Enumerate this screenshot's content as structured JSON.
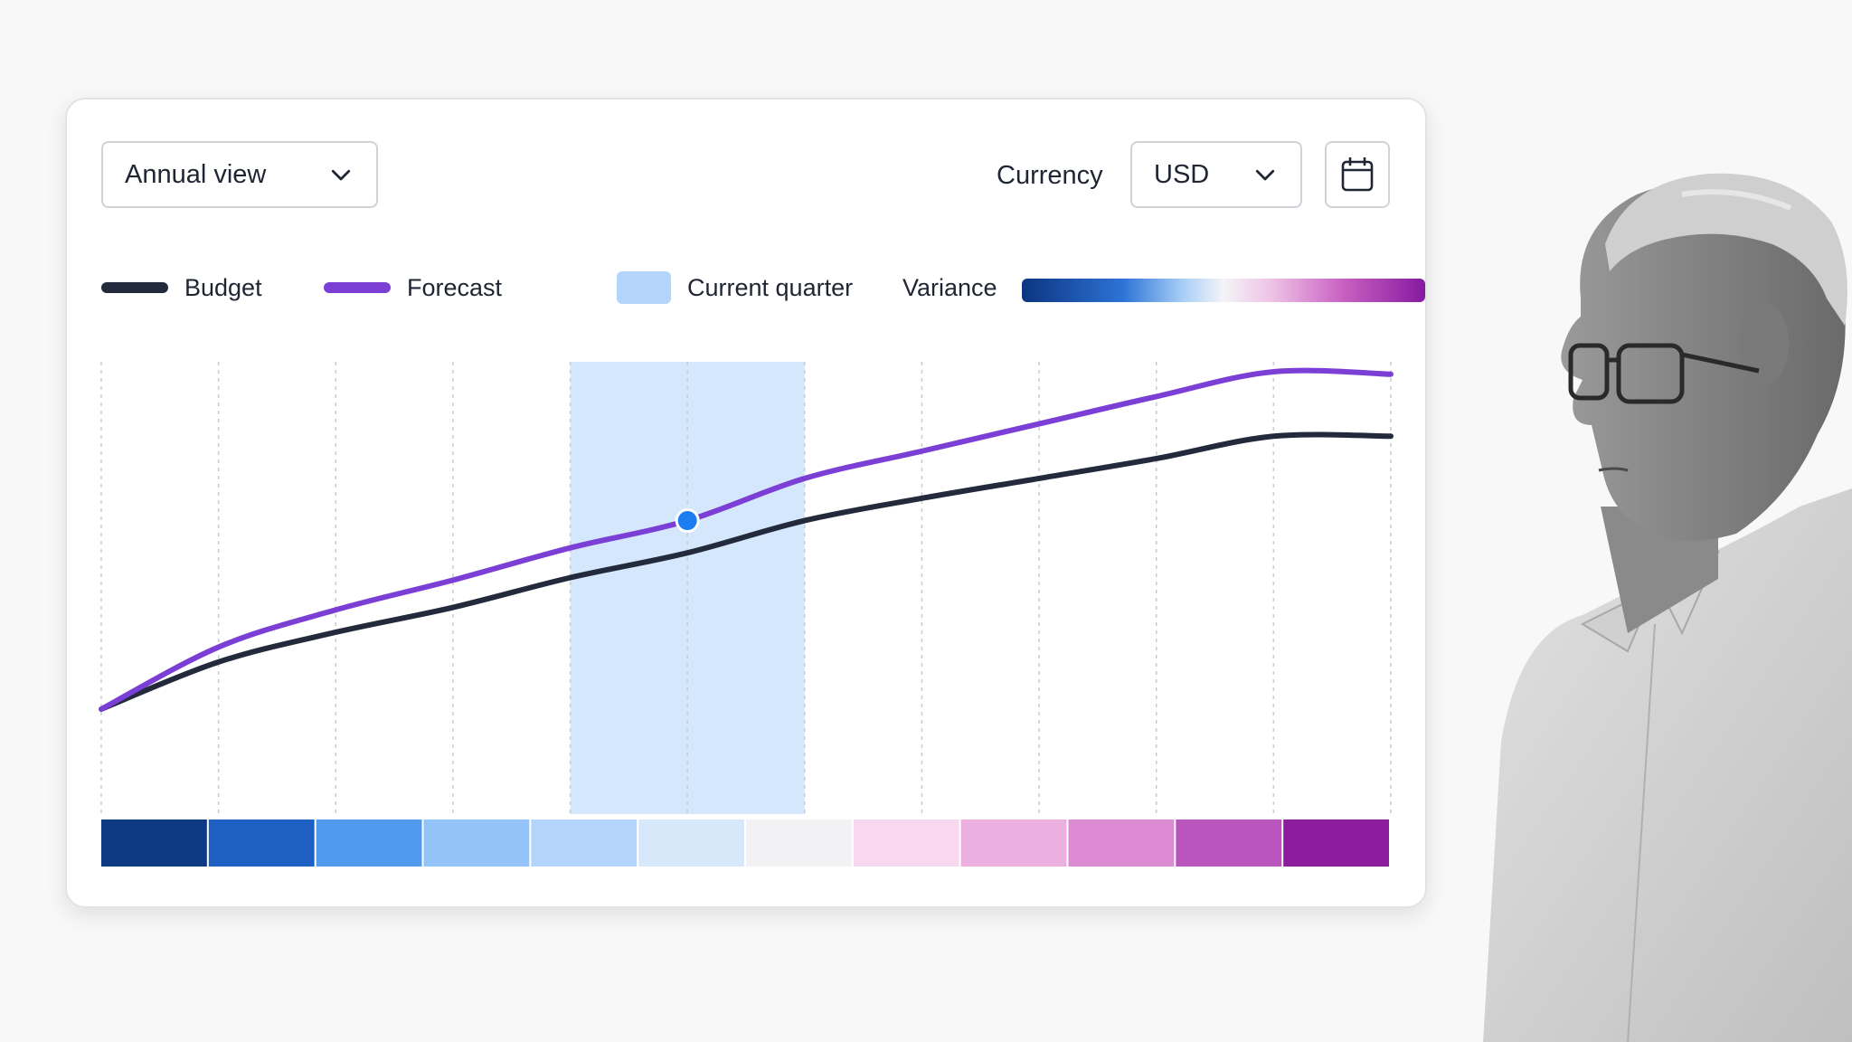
{
  "controls": {
    "view_select": {
      "value": "Annual view"
    },
    "currency": {
      "label": "Currency",
      "value": "USD"
    }
  },
  "legend": {
    "budget": "Budget",
    "forecast": "Forecast",
    "current_quarter": "Current quarter",
    "variance": "Variance"
  },
  "colors": {
    "budget": "#222a3b",
    "forecast": "#7b3fd6",
    "current_quarter": "#b3d4fb",
    "highlight_point": "#1a7ef0"
  },
  "icons": [
    "chevron-down-icon",
    "calendar-icon"
  ],
  "chart_data": {
    "type": "line",
    "x_count": 12,
    "series": [
      {
        "name": "Budget",
        "values": [
          0,
          19,
          31,
          41,
          53,
          63,
          76,
          85,
          93,
          101,
          110,
          110
        ]
      },
      {
        "name": "Forecast",
        "values": [
          0,
          25,
          40,
          52,
          65,
          76,
          93,
          104,
          115,
          126,
          136,
          135
        ]
      }
    ],
    "highlight": {
      "series": "Forecast",
      "index": 5
    },
    "current_quarter_range": [
      4,
      6
    ],
    "variance_strip": [
      "#0d3a83",
      "#1e60c2",
      "#509bf0",
      "#93c3f7",
      "#b3d4fb",
      "#d8e8fb",
      "#f2f2f5",
      "#f7d8ef",
      "#ecb0e0",
      "#dc8ad2",
      "#bb55be",
      "#8d1d9e"
    ],
    "grid": "vertical-dashed"
  }
}
